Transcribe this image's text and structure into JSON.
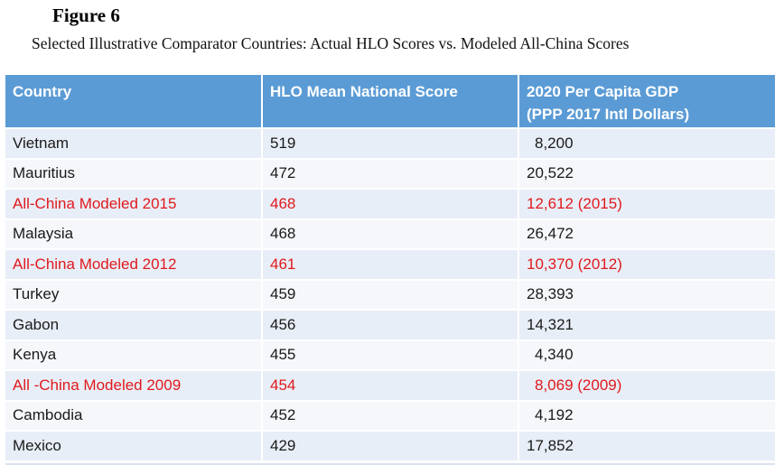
{
  "figure": {
    "label": "Figure 6",
    "title": "Selected Illustrative Comparator Countries: Actual HLO Scores vs. Modeled All-China Scores"
  },
  "table": {
    "headers": {
      "country": "Country",
      "hlo": "HLO Mean National Score",
      "gdp_line1": "2020 Per Capita GDP",
      "gdp_line2": "(PPP 2017 Intl Dollars)"
    },
    "rows": [
      {
        "country": "Vietnam",
        "hlo": "519",
        "gdp": "8,200",
        "highlight": false
      },
      {
        "country": "Mauritius",
        "hlo": "472",
        "gdp": "20,522",
        "highlight": false
      },
      {
        "country": "All-China Modeled 2015",
        "hlo": "468",
        "gdp": "12,612 (2015)",
        "highlight": true
      },
      {
        "country": "Malaysia",
        "hlo": "468",
        "gdp": "26,472",
        "highlight": false
      },
      {
        "country": "All-China Modeled 2012",
        "hlo": "461",
        "gdp": "10,370 (2012)",
        "highlight": true
      },
      {
        "country": "Turkey",
        "hlo": "459",
        "gdp": "28,393",
        "highlight": false
      },
      {
        "country": "Gabon",
        "hlo": "456",
        "gdp": "14,321",
        "highlight": false
      },
      {
        "country": "Kenya",
        "hlo": "455",
        "gdp": "4,340",
        "highlight": false
      },
      {
        "country": "All -China Modeled 2009",
        "hlo": "454",
        "gdp": "8,069 (2009)",
        "highlight": true
      },
      {
        "country": "Cambodia",
        "hlo": "452",
        "gdp": "4,192",
        "highlight": false
      },
      {
        "country": "Mexico",
        "hlo": "429",
        "gdp": "17,852",
        "highlight": false
      }
    ]
  },
  "colors": {
    "header_bg": "#5b9bd5",
    "highlight_text": "#e0191d",
    "row_odd": "#e8eef7",
    "row_even": "#f5f7fb"
  }
}
